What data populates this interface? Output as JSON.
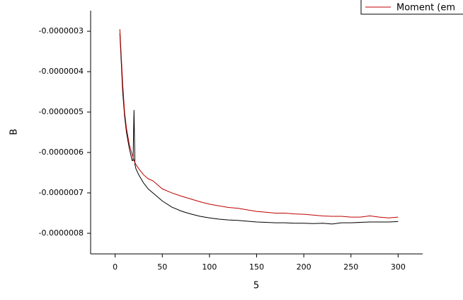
{
  "chart_data": {
    "type": "line",
    "x_label": "5",
    "y_label": "B",
    "x": [
      5,
      8,
      10,
      12,
      15,
      18,
      19,
      20,
      21,
      22,
      25,
      30,
      35,
      40,
      45,
      50,
      60,
      70,
      80,
      90,
      100,
      110,
      120,
      130,
      140,
      150,
      160,
      170,
      180,
      190,
      200,
      210,
      220,
      230,
      240,
      250,
      260,
      270,
      280,
      290,
      300
    ],
    "series": [
      {
        "color": "#000000",
        "values": [
          -3.05e-07,
          -4.5e-07,
          -5.1e-07,
          -5.5e-07,
          -5.9e-07,
          -6.2e-07,
          -6.2e-07,
          -4.95e-07,
          -6.3e-07,
          -6.4e-07,
          -6.55e-07,
          -6.75e-07,
          -6.9e-07,
          -7e-07,
          -7.1e-07,
          -7.2e-07,
          -7.35e-07,
          -7.45e-07,
          -7.52e-07,
          -7.58e-07,
          -7.62e-07,
          -7.65e-07,
          -7.67e-07,
          -7.68e-07,
          -7.7e-07,
          -7.72e-07,
          -7.73e-07,
          -7.74e-07,
          -7.74e-07,
          -7.75e-07,
          -7.75e-07,
          -7.76e-07,
          -7.75e-07,
          -7.77e-07,
          -7.74e-07,
          -7.74e-07,
          -7.73e-07,
          -7.72e-07,
          -7.72e-07,
          -7.72e-07,
          -7.71e-07
        ]
      },
      {
        "name": "Moment (em",
        "color": "#c00000",
        "values": [
          -2.95e-07,
          -4.3e-07,
          -5e-07,
          -5.4e-07,
          -5.8e-07,
          -6.05e-07,
          -6.12e-07,
          -6.2e-07,
          -6.25e-07,
          -6.3e-07,
          -6.4e-07,
          -6.55e-07,
          -6.65e-07,
          -6.7e-07,
          -6.8e-07,
          -6.9e-07,
          -7e-07,
          -7.08e-07,
          -7.15e-07,
          -7.22e-07,
          -7.28e-07,
          -7.32e-07,
          -7.36e-07,
          -7.38e-07,
          -7.42e-07,
          -7.46e-07,
          -7.48e-07,
          -7.5e-07,
          -7.5e-07,
          -7.52e-07,
          -7.53e-07,
          -7.55e-07,
          -7.57e-07,
          -7.58e-07,
          -7.58e-07,
          -7.6e-07,
          -7.6e-07,
          -7.57e-07,
          -7.6e-07,
          -7.62e-07,
          -7.6e-07
        ]
      }
    ],
    "xlim": [
      -26,
      326
    ],
    "xticks": [
      0,
      50,
      100,
      150,
      200,
      250,
      300
    ],
    "ylim": [
      -8.51e-07,
      -2.49e-07
    ],
    "yticks": [
      {
        "value": -3e-07,
        "label": "-0.0000003"
      },
      {
        "value": -4e-07,
        "label": "-0.0000004"
      },
      {
        "value": -5e-07,
        "label": "-0.0000005"
      },
      {
        "value": -6e-07,
        "label": "-0.0000006"
      },
      {
        "value": -7e-07,
        "label": "-0.0000007"
      },
      {
        "value": -8e-07,
        "label": "-0.0000008"
      }
    ]
  }
}
